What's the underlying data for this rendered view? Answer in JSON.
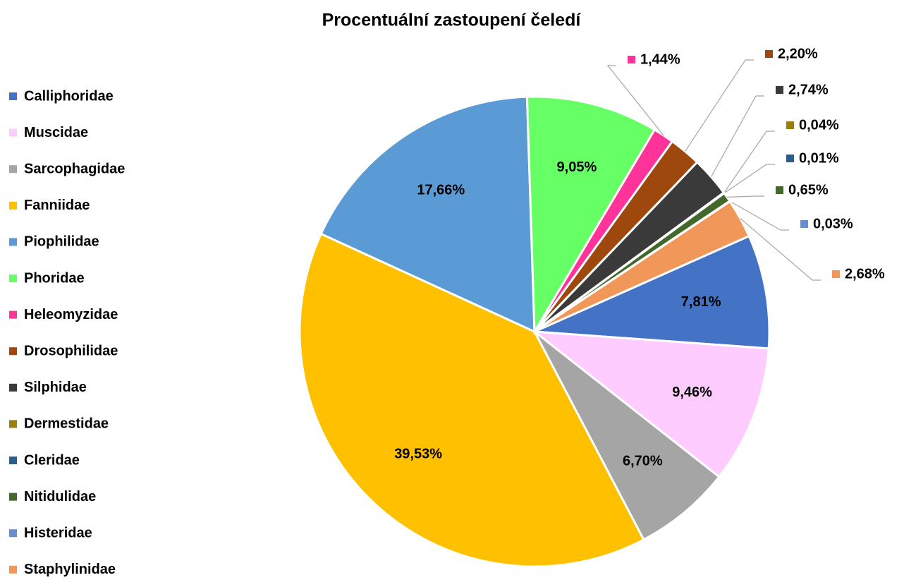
{
  "chart_data": {
    "type": "pie",
    "title": "Procentuální zastoupení čeledí",
    "categories": [
      "Calliphoridae",
      "Muscidae",
      "Sarcophagidae",
      "Fanniidae",
      "Piophilidae",
      "Phoridae",
      "Heleomyzidae",
      "Drosophilidae",
      "Silphidae",
      "Dermestidae",
      "Cleridae",
      "Nitidulidae",
      "Histeridae",
      "Staphylinidae"
    ],
    "values": [
      7.81,
      9.46,
      6.7,
      39.53,
      17.66,
      9.05,
      1.44,
      2.2,
      2.74,
      0.04,
      0.01,
      0.65,
      0.03,
      2.68
    ],
    "value_labels": [
      "7,81%",
      "9,46%",
      "6,70%",
      "39,53%",
      "17,66%",
      "9,05%",
      "1,44%",
      "2,20%",
      "2,74%",
      "0,04%",
      "0,01%",
      "0,65%",
      "0,03%",
      "2,68%"
    ],
    "colors": [
      "#4472c4",
      "#ffccff",
      "#a5a5a5",
      "#ffc000",
      "#5b9bd5",
      "#66ff66",
      "#ff3399",
      "#9e480e",
      "#3a3a3a",
      "#9c7f0a",
      "#255e91",
      "#43682b",
      "#698ed0",
      "#f1975a"
    ],
    "legend": "left"
  }
}
